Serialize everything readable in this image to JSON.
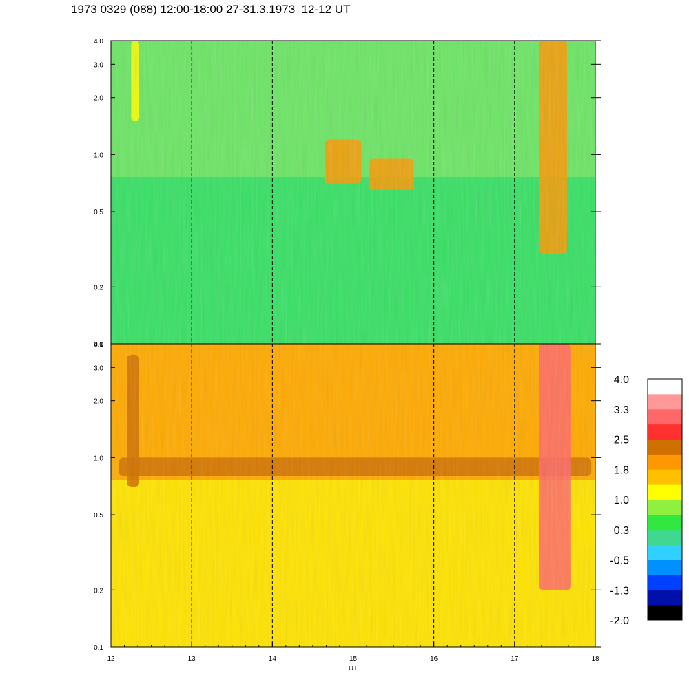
{
  "title": "1973 0329 (088) 12:00-18:00 27-31.3.1973  12-12 UT",
  "chart_data": {
    "type": "heatmap",
    "title": "1973 0329 (088) 12:00-18:00 27-31.3.1973  12-12 UT",
    "xlabel": "UT",
    "ylabel": "",
    "x_range": [
      12,
      18
    ],
    "x_ticks": [
      "12",
      "13",
      "14",
      "15",
      "16",
      "17",
      "18"
    ],
    "y_scale": "log",
    "y_range": [
      0.1,
      4.0
    ],
    "y_ticks": [
      {
        "value": 0.1,
        "label": "0.1"
      },
      {
        "value": 0.2,
        "label": "0.2"
      },
      {
        "value": 0.5,
        "label": "0.5"
      },
      {
        "value": 1.0,
        "label": "1.0"
      },
      {
        "value": 2.0,
        "label": "2.0"
      },
      {
        "value": 3.0,
        "label": "3.0"
      },
      {
        "value": 4.0,
        "label": "4.0"
      }
    ],
    "hour_markers": [
      13,
      14,
      15,
      16,
      17
    ],
    "panels": [
      {
        "id": "upper",
        "dominant_levels": "0.3 to 1.0",
        "enhancements": [
          {
            "x": [
              12.25,
              12.35
            ],
            "y": [
              1.5,
              4.0
            ],
            "level": 1.0
          },
          {
            "x": [
              14.65,
              15.1
            ],
            "y": [
              0.7,
              1.2
            ],
            "level": 1.8
          },
          {
            "x": [
              15.2,
              15.75
            ],
            "y": [
              0.65,
              0.95
            ],
            "level": 1.8
          },
          {
            "x": [
              17.3,
              17.65
            ],
            "y": [
              0.3,
              4.0
            ],
            "level": 1.8
          }
        ]
      },
      {
        "id": "lower",
        "dominant_levels": "1.0 to 2.5",
        "enhancements": [
          {
            "x": [
              12.2,
              12.35
            ],
            "y": [
              0.7,
              3.5
            ],
            "level": 2.5
          },
          {
            "x": [
              12.1,
              17.95
            ],
            "y": [
              0.8,
              1.0
            ],
            "level": 2.5
          },
          {
            "x": [
              17.3,
              17.7
            ],
            "y": [
              0.2,
              4.0
            ],
            "level": 3.3
          }
        ]
      }
    ],
    "colorbar": {
      "labels": [
        "4.0",
        "3.3",
        "2.5",
        "1.8",
        "1.0",
        "0.3",
        "-0.5",
        "-1.3",
        "-2.0"
      ],
      "min": -2.0,
      "max": 4.0,
      "colors": [
        "#000000",
        "#0010a8",
        "#0040ff",
        "#0090ff",
        "#30d0ff",
        "#40d890",
        "#30e840",
        "#90f040",
        "#ffff00",
        "#ffc000",
        "#ff9800",
        "#d07000",
        "#ff3030",
        "#ff6868",
        "#ff9898",
        "#ffffff"
      ]
    }
  }
}
